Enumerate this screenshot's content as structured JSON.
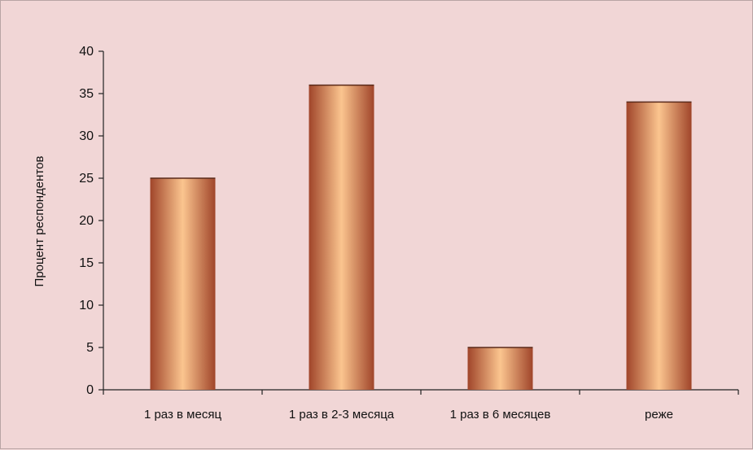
{
  "chart_data": {
    "type": "bar",
    "categories": [
      "1 раз в месяц",
      "1 раз в 2-3 месяца",
      "1 раз в 6 месяцев",
      "реже"
    ],
    "values": [
      25,
      36,
      5,
      34
    ],
    "title": "",
    "xlabel": "",
    "ylabel": "Процент  респондентов",
    "ylim": [
      0,
      40
    ],
    "yticks": [
      0,
      5,
      10,
      15,
      20,
      25,
      30,
      35,
      40
    ],
    "grid": false,
    "legend": "none",
    "colors": {
      "bar_edge": "#a0452a",
      "bar_center": "#fbc58f",
      "background": "#f1d6d6",
      "axis": "#222222"
    }
  }
}
